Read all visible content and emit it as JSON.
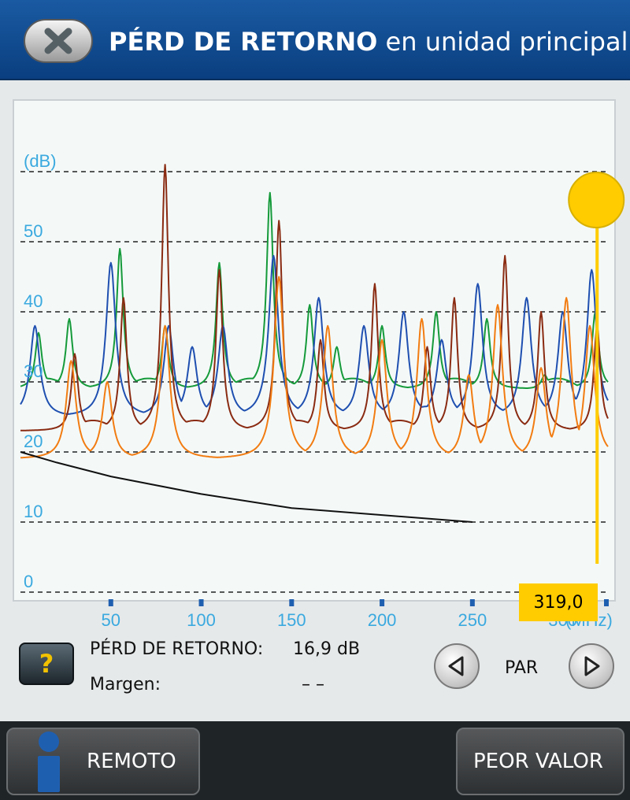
{
  "header": {
    "title_bold": "PÉRD DE RETORNO",
    "title_rest": " en unidad principal",
    "close_icon": "close-x-icon"
  },
  "chart_data": {
    "type": "line",
    "ylabel": "(dB)",
    "xlabel": "(MHz)",
    "ylim": [
      0,
      60
    ],
    "xlim": [
      0,
      325
    ],
    "y_ticks": [
      "0",
      "10",
      "20",
      "30",
      "40",
      "50"
    ],
    "x_ticks": [
      "50",
      "100",
      "150",
      "200",
      "250",
      "300"
    ],
    "grid": "horizontal dashed",
    "cursor": {
      "x": 319.0,
      "label": "319,0"
    },
    "colors": {
      "green": "#159a3a",
      "blue": "#1f4fb0",
      "brown": "#8a2b12",
      "orange": "#f27c12",
      "limit": "#111111",
      "cursor": "#ffcc00",
      "axis_text": "#3aa9df"
    },
    "series": [
      {
        "color_key": "green",
        "base": 29,
        "peaks": [
          [
            10,
            37
          ],
          [
            27,
            39
          ],
          [
            55,
            49
          ],
          [
            80,
            38
          ],
          [
            110,
            47
          ],
          [
            138,
            57
          ],
          [
            160,
            41
          ],
          [
            175,
            35
          ],
          [
            200,
            38
          ],
          [
            230,
            40
          ],
          [
            258,
            39
          ],
          [
            290,
            31
          ],
          [
            318,
            40
          ]
        ]
      },
      {
        "color_key": "blue",
        "base": 25,
        "peaks": [
          [
            8,
            38
          ],
          [
            50,
            47
          ],
          [
            82,
            38
          ],
          [
            95,
            35
          ],
          [
            112,
            38
          ],
          [
            140,
            48
          ],
          [
            165,
            42
          ],
          [
            190,
            38
          ],
          [
            212,
            40
          ],
          [
            233,
            36
          ],
          [
            253,
            44
          ],
          [
            280,
            42
          ],
          [
            300,
            40
          ],
          [
            316,
            46
          ]
        ]
      },
      {
        "color_key": "brown",
        "base": 23,
        "peaks": [
          [
            30,
            34
          ],
          [
            57,
            42
          ],
          [
            80,
            61
          ],
          [
            110,
            46
          ],
          [
            143,
            53
          ],
          [
            166,
            36
          ],
          [
            196,
            44
          ],
          [
            225,
            35
          ],
          [
            240,
            42
          ],
          [
            268,
            48
          ],
          [
            288,
            40
          ],
          [
            319,
            38
          ]
        ]
      },
      {
        "color_key": "orange",
        "base": 19,
        "peaks": [
          [
            28,
            33
          ],
          [
            48,
            30
          ],
          [
            80,
            38
          ],
          [
            143,
            45
          ],
          [
            170,
            38
          ],
          [
            200,
            36
          ],
          [
            222,
            39
          ],
          [
            248,
            31
          ],
          [
            264,
            41
          ],
          [
            288,
            32
          ],
          [
            302,
            42
          ],
          [
            315,
            38
          ]
        ]
      }
    ],
    "limit_line": [
      [
        0,
        20
      ],
      [
        20,
        18.5
      ],
      [
        50,
        16.5
      ],
      [
        100,
        14
      ],
      [
        150,
        12
      ],
      [
        200,
        11
      ],
      [
        250,
        10
      ]
    ]
  },
  "info": {
    "return_loss_label": "PÉRD DE RETORNO:",
    "return_loss_value": "16,9 dB",
    "margin_label": "Margen:",
    "margin_value": "– –",
    "pair_label": "PAR",
    "help_symbol": "?"
  },
  "footer": {
    "remote_label": "REMOTO",
    "worst_label": "PEOR VALOR"
  }
}
